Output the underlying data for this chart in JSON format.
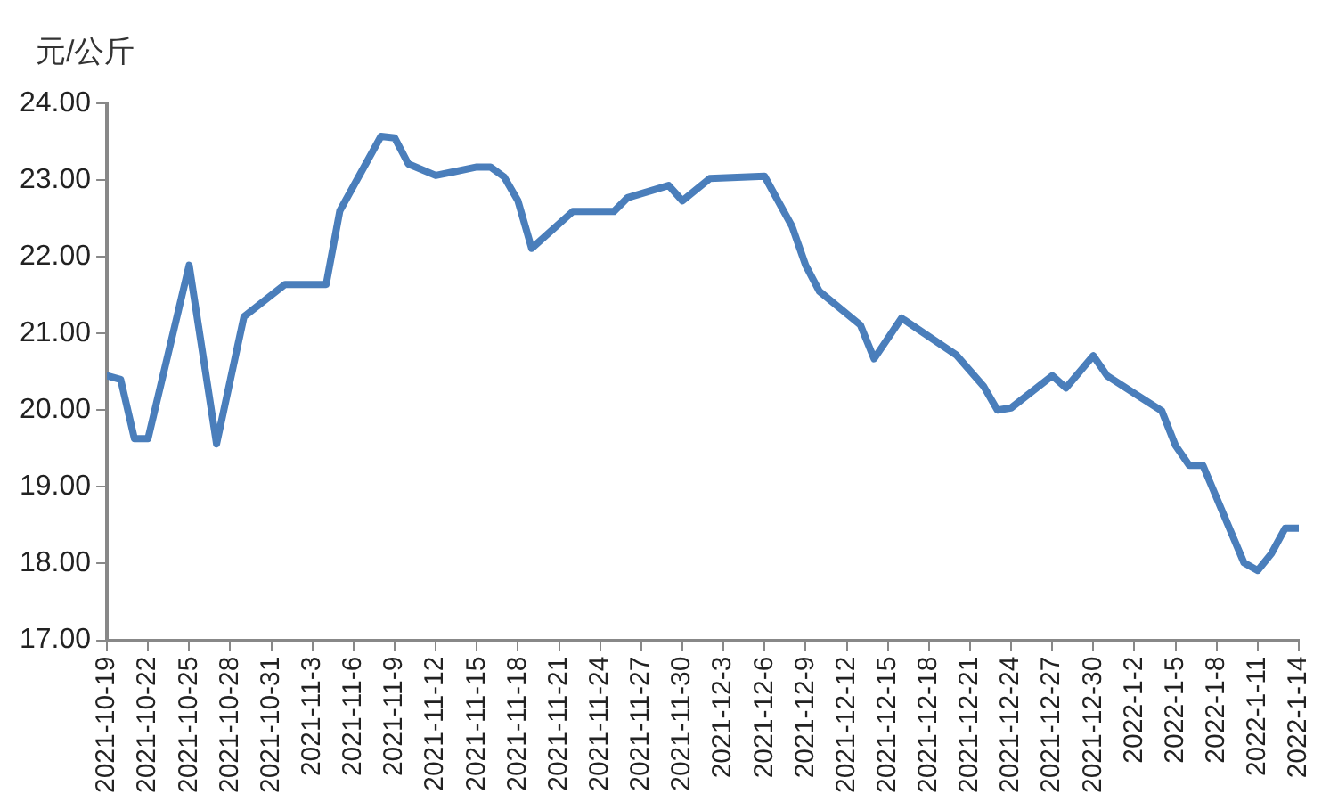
{
  "chart_data": {
    "type": "line",
    "ylabel": "元/公斤",
    "marker": "none",
    "grid": false,
    "legend": false,
    "x": [
      "2021-10-19",
      "2021-10-20",
      "2021-10-21",
      "2021-10-22",
      "2021-10-25",
      "2021-10-27",
      "2021-10-29",
      "2021-11-01",
      "2021-11-04",
      "2021-11-05",
      "2021-11-08",
      "2021-11-09",
      "2021-11-10",
      "2021-11-12",
      "2021-11-15",
      "2021-11-16",
      "2021-11-17",
      "2021-11-18",
      "2021-11-19",
      "2021-11-22",
      "2021-11-25",
      "2021-11-26",
      "2021-11-29",
      "2021-11-30",
      "2021-12-02",
      "2021-12-06",
      "2021-12-08",
      "2021-12-09",
      "2021-12-10",
      "2021-12-13",
      "2021-12-14",
      "2021-12-16",
      "2021-12-20",
      "2021-12-22",
      "2021-12-23",
      "2021-12-24",
      "2021-12-27",
      "2021-12-28",
      "2021-12-30",
      "2021-12-31",
      "2022-01-04",
      "2022-01-05",
      "2022-01-06",
      "2022-01-07",
      "2022-01-10",
      "2022-01-11",
      "2022-01-12",
      "2022-01-13",
      "2022-01-14"
    ],
    "series": [
      {
        "color": "#4a7ebb",
        "values": [
          20.45,
          20.4,
          19.63,
          19.63,
          21.89,
          19.56,
          21.22,
          21.64,
          21.64,
          22.6,
          23.57,
          23.55,
          23.21,
          23.06,
          23.17,
          23.17,
          23.04,
          22.73,
          22.11,
          22.59,
          22.59,
          22.77,
          22.93,
          22.73,
          23.02,
          23.05,
          22.4,
          21.89,
          21.55,
          21.11,
          20.67,
          21.2,
          20.72,
          20.31,
          20.0,
          20.03,
          20.45,
          20.29,
          20.71,
          20.45,
          19.99,
          19.54,
          19.28,
          19.28,
          18.01,
          17.91,
          18.13,
          18.46,
          18.46
        ]
      }
    ],
    "xlim": [
      "2021-10-19",
      "2022-01-14"
    ],
    "xticks": [
      {
        "value": "2021-10-19",
        "label": "2021-10-19"
      },
      {
        "value": "2021-10-22",
        "label": "2021-10-22"
      },
      {
        "value": "2021-10-25",
        "label": "2021-10-25"
      },
      {
        "value": "2021-10-28",
        "label": "2021-10-28"
      },
      {
        "value": "2021-10-31",
        "label": "2021-10-31"
      },
      {
        "value": "2021-11-03",
        "label": "2021-11-3"
      },
      {
        "value": "2021-11-06",
        "label": "2021-11-6"
      },
      {
        "value": "2021-11-09",
        "label": "2021-11-9"
      },
      {
        "value": "2021-11-12",
        "label": "2021-11-12"
      },
      {
        "value": "2021-11-15",
        "label": "2021-11-15"
      },
      {
        "value": "2021-11-18",
        "label": "2021-11-18"
      },
      {
        "value": "2021-11-21",
        "label": "2021-11-21"
      },
      {
        "value": "2021-11-24",
        "label": "2021-11-24"
      },
      {
        "value": "2021-11-27",
        "label": "2021-11-27"
      },
      {
        "value": "2021-11-30",
        "label": "2021-11-30"
      },
      {
        "value": "2021-12-03",
        "label": "2021-12-3"
      },
      {
        "value": "2021-12-06",
        "label": "2021-12-6"
      },
      {
        "value": "2021-12-09",
        "label": "2021-12-9"
      },
      {
        "value": "2021-12-12",
        "label": "2021-12-12"
      },
      {
        "value": "2021-12-15",
        "label": "2021-12-15"
      },
      {
        "value": "2021-12-18",
        "label": "2021-12-18"
      },
      {
        "value": "2021-12-21",
        "label": "2021-12-21"
      },
      {
        "value": "2021-12-24",
        "label": "2021-12-24"
      },
      {
        "value": "2021-12-27",
        "label": "2021-12-27"
      },
      {
        "value": "2021-12-30",
        "label": "2021-12-30"
      },
      {
        "value": "2022-01-02",
        "label": "2022-1-2"
      },
      {
        "value": "2022-01-05",
        "label": "2022-1-5"
      },
      {
        "value": "2022-01-08",
        "label": "2022-1-8"
      },
      {
        "value": "2022-01-11",
        "label": "2022-1-11"
      },
      {
        "value": "2022-01-14",
        "label": "2022-1-14"
      }
    ],
    "ylim": [
      17,
      24
    ],
    "yticks": [
      {
        "value": 17,
        "label": "17.00"
      },
      {
        "value": 18,
        "label": "18.00"
      },
      {
        "value": 19,
        "label": "19.00"
      },
      {
        "value": 20,
        "label": "20.00"
      },
      {
        "value": 21,
        "label": "21.00"
      },
      {
        "value": 22,
        "label": "22.00"
      },
      {
        "value": 23,
        "label": "23.00"
      },
      {
        "value": 24,
        "label": "24.00"
      }
    ]
  }
}
